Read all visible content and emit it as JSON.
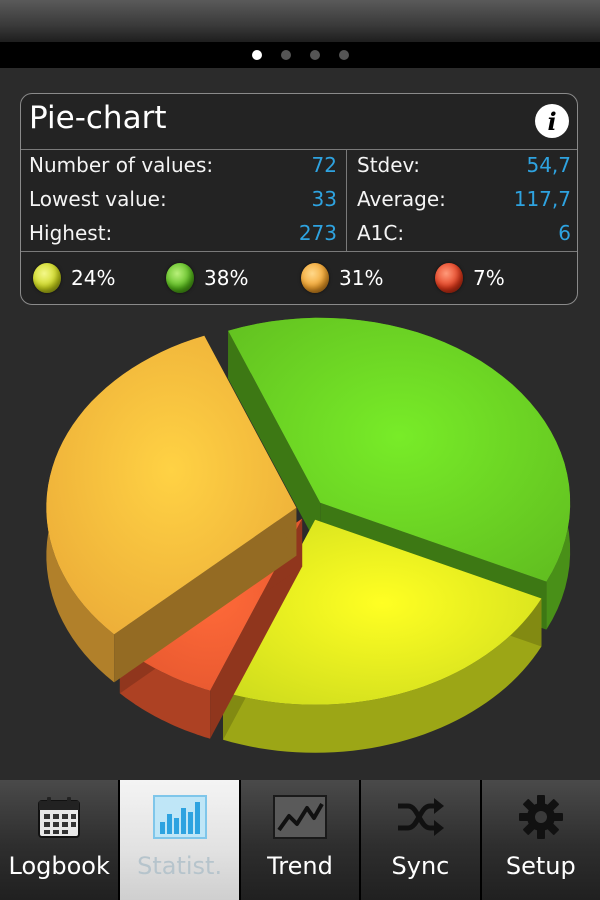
{
  "pager": {
    "count": 4,
    "active": 0
  },
  "card": {
    "title": "Pie-chart",
    "stats_left": [
      {
        "label": "Number of values:",
        "value": "72"
      },
      {
        "label": "Lowest value:",
        "value": "33"
      },
      {
        "label": "Highest:",
        "value": "273"
      }
    ],
    "stats_right": [
      {
        "label": "Stdev:",
        "value": "54,7"
      },
      {
        "label": "Average:",
        "value": "117,7"
      },
      {
        "label": "A1C:",
        "value": "6"
      }
    ],
    "legend": [
      {
        "percent": "24%",
        "color": "#d4e21c"
      },
      {
        "percent": "38%",
        "color": "#5cc01c"
      },
      {
        "percent": "31%",
        "color": "#f2a22e"
      },
      {
        "percent": "7%",
        "color": "#e83a1a"
      }
    ]
  },
  "chart_data": {
    "type": "pie",
    "values": [
      24,
      38,
      31,
      7
    ],
    "colors": [
      "#d8e61e",
      "#66c822",
      "#f6b23a",
      "#f05a30"
    ]
  },
  "nav": [
    {
      "label": "Logbook",
      "icon": "calendar-icon",
      "active": false
    },
    {
      "label": "Statist.",
      "icon": "bar-chart-icon",
      "active": true
    },
    {
      "label": "Trend",
      "icon": "trend-line-icon",
      "active": false
    },
    {
      "label": "Sync",
      "icon": "shuffle-icon",
      "active": false
    },
    {
      "label": "Setup",
      "icon": "gear-icon",
      "active": false
    }
  ]
}
